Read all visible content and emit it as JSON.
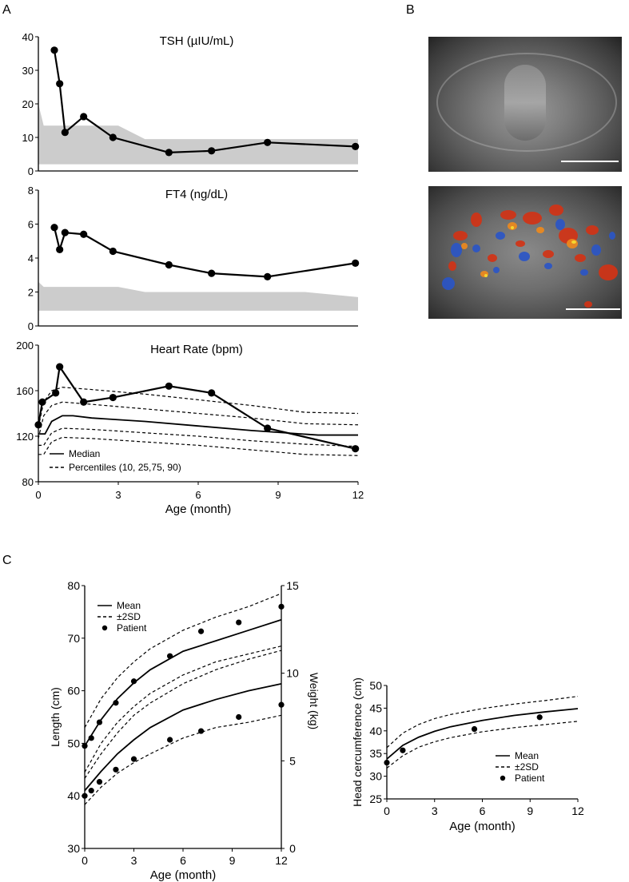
{
  "figure": {
    "panel_labels": {
      "a": "A",
      "b": "B",
      "c": "C"
    }
  },
  "colors": {
    "line": "#000000",
    "band": "#cccccc",
    "grid": "#000000"
  },
  "chart_data": [
    {
      "id": "tsh",
      "type": "line",
      "title": "TSH (µIU/mL)",
      "xlabel": "",
      "ylabel": "",
      "xlim": [
        0,
        12
      ],
      "ylim": [
        0,
        40
      ],
      "yticks": [
        0,
        10,
        20,
        30,
        40
      ],
      "xticks": [],
      "band": {
        "x": [
          0,
          0.2,
          3,
          4,
          12
        ],
        "lower": [
          2,
          2,
          2,
          2,
          2
        ],
        "upper": [
          20,
          13.5,
          13.5,
          9.5,
          9.5
        ]
      },
      "series": [
        {
          "name": "Patient",
          "style": "line-marker",
          "x": [
            0.6,
            0.8,
            1.0,
            1.7,
            2.8,
            4.9,
            6.5,
            8.6,
            11.9
          ],
          "y": [
            36,
            26,
            11.5,
            16.2,
            10,
            5.5,
            6,
            8.5,
            7.3
          ]
        }
      ]
    },
    {
      "id": "ft4",
      "type": "line",
      "title": "FT4 (ng/dL)",
      "xlabel": "",
      "ylabel": "",
      "xlim": [
        0,
        12
      ],
      "ylim": [
        0,
        8
      ],
      "yticks": [
        0,
        2,
        4,
        6,
        8
      ],
      "xticks": [],
      "band": {
        "x": [
          0,
          0.2,
          3,
          4,
          10,
          12
        ],
        "lower": [
          0.9,
          0.9,
          0.9,
          0.9,
          0.9,
          0.9
        ],
        "upper": [
          2.6,
          2.3,
          2.3,
          2.0,
          2.0,
          1.7
        ]
      },
      "series": [
        {
          "name": "Patient",
          "style": "line-marker",
          "x": [
            0.6,
            0.8,
            1.0,
            1.7,
            2.8,
            4.9,
            6.5,
            8.6,
            11.9
          ],
          "y": [
            5.8,
            4.5,
            5.5,
            5.4,
            4.4,
            3.6,
            3.1,
            2.9,
            3.7
          ]
        }
      ]
    },
    {
      "id": "hr",
      "type": "line",
      "title": "Heart Rate (bpm)",
      "xlabel": "Age (month)",
      "ylabel": "",
      "xlim": [
        0,
        12
      ],
      "ylim": [
        80,
        200
      ],
      "yticks": [
        80,
        120,
        160,
        200
      ],
      "xticks": [
        0,
        3,
        6,
        9,
        12
      ],
      "legend": [
        {
          "label": "Median",
          "style": "solid"
        },
        {
          "label": "Percentiles (10, 25,75, 90)",
          "style": "dashed"
        }
      ],
      "series": [
        {
          "name": "Median",
          "style": "solid",
          "x": [
            0,
            0.25,
            0.5,
            0.9,
            1.3,
            2,
            4,
            6,
            8,
            10.5,
            12
          ],
          "y": [
            122,
            122,
            133,
            138,
            138,
            136,
            133,
            129,
            125,
            121,
            121
          ]
        },
        {
          "name": "P90",
          "style": "dashed",
          "x": [
            0,
            0.2,
            0.5,
            0.9,
            2,
            4,
            6,
            8,
            10,
            12
          ],
          "y": [
            128,
            150,
            160,
            163,
            161,
            157,
            152,
            147,
            141,
            140
          ]
        },
        {
          "name": "P75",
          "style": "dashed",
          "x": [
            0,
            0.2,
            0.5,
            0.9,
            2,
            4,
            6,
            8,
            10,
            12
          ],
          "y": [
            118,
            138,
            147,
            150,
            148,
            144,
            140,
            136,
            131,
            130
          ]
        },
        {
          "name": "P25",
          "style": "dashed",
          "x": [
            0,
            0.2,
            0.5,
            0.9,
            2,
            4,
            6,
            8,
            10,
            12
          ],
          "y": [
            112,
            112,
            123,
            127,
            126,
            123,
            120,
            116,
            113,
            111
          ]
        },
        {
          "name": "P10",
          "style": "dashed",
          "x": [
            0,
            0.2,
            0.5,
            0.9,
            2,
            4,
            6,
            8,
            10,
            12
          ],
          "y": [
            104,
            104,
            115,
            119,
            118,
            115,
            112,
            108,
            104,
            103
          ]
        },
        {
          "name": "Patient",
          "style": "line-marker",
          "x": [
            0,
            0.15,
            0.65,
            0.8,
            1.7,
            2.8,
            4.9,
            6.5,
            8.6,
            11.9
          ],
          "y": [
            130,
            150,
            158,
            181,
            150,
            154,
            164,
            158,
            127,
            109
          ]
        }
      ]
    },
    {
      "id": "growth",
      "type": "line",
      "title": "",
      "xlabel": "Age (month)",
      "ylabel": "Length (cm)",
      "y2label": "Weight (kg)",
      "xlim": [
        0,
        12
      ],
      "ylim": [
        30,
        80
      ],
      "y2lim": [
        0,
        15
      ],
      "xticks": [
        0,
        3,
        6,
        9,
        12
      ],
      "yticks": [
        30,
        40,
        50,
        60,
        70,
        80
      ],
      "y2ticks": [
        0,
        5,
        10,
        15
      ],
      "legend": [
        {
          "label": "Mean",
          "style": "solid"
        },
        {
          "label": "±2SD",
          "style": "dashed"
        },
        {
          "label": "Patient",
          "style": "dot"
        }
      ],
      "series": [
        {
          "name": "Length mean",
          "axis": "left",
          "style": "solid",
          "x": [
            0,
            1,
            2,
            3,
            4,
            6,
            8,
            10,
            12
          ],
          "y": [
            49.5,
            54.5,
            58.5,
            61.5,
            64,
            67.5,
            69.5,
            71.5,
            73.5
          ]
        },
        {
          "name": "Length +2SD",
          "axis": "left",
          "style": "dashed",
          "x": [
            0,
            1,
            2,
            3,
            4,
            6,
            8,
            10,
            12
          ],
          "y": [
            53,
            58.5,
            62.5,
            65.5,
            68,
            71.5,
            74,
            76,
            78.5
          ]
        },
        {
          "name": "Length -2SD",
          "axis": "left",
          "style": "dashed",
          "x": [
            0,
            1,
            2,
            3,
            4,
            6,
            8,
            10,
            12
          ],
          "y": [
            44.5,
            50,
            54,
            57,
            59.5,
            63,
            65.5,
            67,
            68.5
          ]
        },
        {
          "name": "Length patient",
          "axis": "left",
          "style": "dot",
          "x": [
            0,
            0.4,
            0.9,
            1.9,
            3,
            5.2,
            7.1,
            9.4,
            12
          ],
          "y": [
            49.5,
            51,
            54,
            57.7,
            61.8,
            66.6,
            71.3,
            73,
            76
          ]
        },
        {
          "name": "Weight mean",
          "axis": "right",
          "style": "solid",
          "x": [
            0,
            1,
            2,
            3,
            4,
            6,
            8,
            10,
            12
          ],
          "y": [
            3.3,
            4.4,
            5.4,
            6.2,
            6.9,
            7.9,
            8.5,
            9.0,
            9.4
          ]
        },
        {
          "name": "Weight +2SD",
          "axis": "right",
          "style": "dashed",
          "x": [
            0,
            1,
            2,
            3,
            4,
            6,
            8,
            10,
            12
          ],
          "y": [
            4.0,
            5.4,
            6.6,
            7.6,
            8.3,
            9.4,
            10.2,
            10.8,
            11.3
          ]
        },
        {
          "name": "Weight -2SD",
          "axis": "right",
          "style": "dashed",
          "x": [
            0,
            1,
            2,
            3,
            4,
            6,
            8,
            10,
            12
          ],
          "y": [
            2.5,
            3.5,
            4.3,
            4.9,
            5.4,
            6.3,
            6.9,
            7.2,
            7.6
          ]
        },
        {
          "name": "Weight patient",
          "axis": "right",
          "style": "dot",
          "x": [
            0,
            0.4,
            0.9,
            1.9,
            3,
            5.2,
            7.1,
            9.4,
            12
          ],
          "y": [
            3.0,
            3.3,
            3.8,
            4.5,
            5.1,
            6.2,
            6.7,
            7.5,
            8.2
          ]
        }
      ]
    },
    {
      "id": "head",
      "type": "line",
      "title": "",
      "xlabel": "Age (month)",
      "ylabel": "Head cercumference (cm)",
      "xlim": [
        0,
        12
      ],
      "ylim": [
        25,
        50
      ],
      "xticks": [
        0,
        3,
        6,
        9,
        12
      ],
      "yticks": [
        25,
        30,
        35,
        40,
        45,
        50
      ],
      "legend": [
        {
          "label": "Mean",
          "style": "solid"
        },
        {
          "label": "±2SD",
          "style": "dashed"
        },
        {
          "label": "Patient",
          "style": "dot"
        }
      ],
      "series": [
        {
          "name": "HC mean",
          "style": "solid",
          "x": [
            0,
            1,
            2,
            3,
            4,
            6,
            8,
            10,
            12
          ],
          "y": [
            33.8,
            36.8,
            38.6,
            39.9,
            40.9,
            42.3,
            43.4,
            44.2,
            44.9
          ]
        },
        {
          "name": "HC +2SD",
          "style": "dashed",
          "x": [
            0,
            1,
            2,
            3,
            4,
            6,
            8,
            10,
            12
          ],
          "y": [
            36.3,
            39.5,
            41.4,
            42.7,
            43.6,
            44.9,
            45.9,
            46.7,
            47.6
          ]
        },
        {
          "name": "HC -2SD",
          "style": "dashed",
          "x": [
            0,
            1,
            2,
            3,
            4,
            6,
            8,
            10,
            12
          ],
          "y": [
            31.8,
            34.5,
            36.4,
            37.6,
            38.5,
            39.8,
            40.7,
            41.4,
            42.1
          ]
        },
        {
          "name": "HC patient",
          "style": "dot",
          "x": [
            0,
            1,
            5.5,
            9.6
          ],
          "y": [
            33,
            35.7,
            40.4,
            43
          ]
        }
      ]
    }
  ]
}
